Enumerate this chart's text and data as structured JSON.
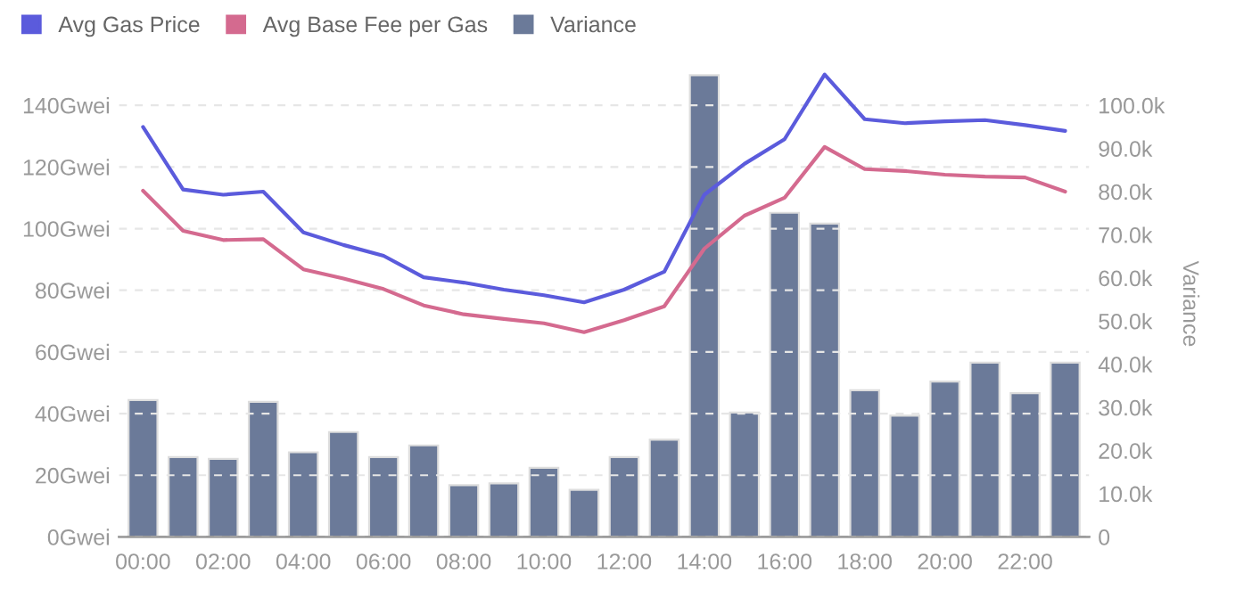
{
  "chart_data": {
    "type": "bar",
    "y2label": "Variance",
    "categories": [
      "00:00",
      null,
      "02:00",
      null,
      "04:00",
      null,
      "06:00",
      null,
      "08:00",
      null,
      "10:00",
      null,
      "12:00",
      null,
      "14:00",
      null,
      "16:00",
      null,
      "18:00",
      null,
      "20:00",
      null,
      "22:00",
      null
    ],
    "series": [
      {
        "name": "Avg Gas Price",
        "type": "line",
        "color": "#5b5bdc",
        "values": [
          133,
          112.7,
          111,
          112,
          98.8,
          94.7,
          91.2,
          84.2,
          82.5,
          80.2,
          78.4,
          76.1,
          80.2,
          86,
          111,
          121,
          129,
          150,
          135.5,
          134.2,
          134.8,
          135.2,
          133.6,
          131.7
        ]
      },
      {
        "name": "Avg Base Fee per Gas",
        "type": "line",
        "color": "#d46a8f",
        "values": [
          112.3,
          99.3,
          96.3,
          96.6,
          86.8,
          83.8,
          80.4,
          75.1,
          72.2,
          70.7,
          69.3,
          66.4,
          70.3,
          74.8,
          93.5,
          104.2,
          110,
          126.5,
          119.3,
          118.7,
          117.5,
          116.9,
          116.6,
          112
        ]
      },
      {
        "name": "Variance",
        "axis": "y2",
        "color": "#6b7a99",
        "values": [
          31700,
          18500,
          18100,
          31300,
          19600,
          24300,
          18500,
          21200,
          12000,
          12400,
          16000,
          10900,
          18500,
          22500,
          107000,
          28800,
          75100,
          72600,
          34000,
          28100,
          36000,
          40400,
          33300,
          40400
        ]
      }
    ],
    "ylim": [
      0,
      151.2
    ],
    "yticks": [
      {
        "value": 0,
        "label": "0Gwei"
      },
      {
        "value": 20,
        "label": "20Gwei"
      },
      {
        "value": 40,
        "label": "40Gwei"
      },
      {
        "value": 60,
        "label": "60Gwei"
      },
      {
        "value": 80,
        "label": "80Gwei"
      },
      {
        "value": 100,
        "label": "100Gwei"
      },
      {
        "value": 120,
        "label": "120Gwei"
      },
      {
        "value": 140,
        "label": "140Gwei"
      }
    ],
    "y2lim": [
      0,
      108000
    ],
    "y2ticks": [
      0,
      {
        "value": 10000,
        "label": "10.0k"
      },
      {
        "value": 20000,
        "label": "20.0k"
      },
      {
        "value": 30000,
        "label": "30.0k"
      },
      {
        "value": 40000,
        "label": "40.0k"
      },
      {
        "value": 50000,
        "label": "50.0k"
      },
      {
        "value": 60000,
        "label": "60.0k"
      },
      {
        "value": 70000,
        "label": "70.0k"
      },
      {
        "value": 80000,
        "label": "80.0k"
      },
      {
        "value": 90000,
        "label": "90.0k"
      },
      {
        "value": 100000,
        "label": "100.0k"
      }
    ],
    "grid": "y",
    "legend": "top left",
    "marker": "none",
    "line_style": "solid"
  }
}
